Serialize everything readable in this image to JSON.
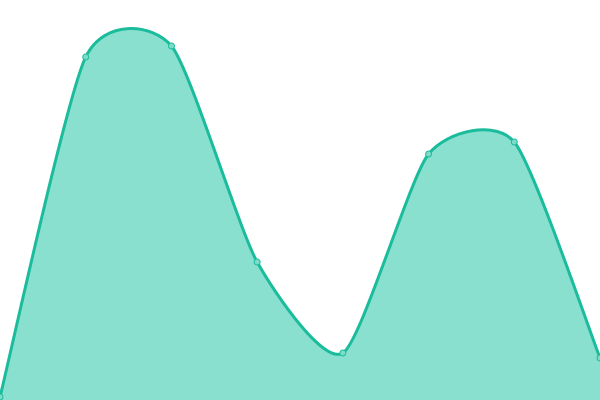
{
  "chart_data": {
    "type": "area",
    "title": "",
    "xlabel": "",
    "ylabel": "",
    "x": [
      0,
      1,
      2,
      3,
      4,
      5,
      6,
      7
    ],
    "series": [
      {
        "values": [
          3,
          343,
          354,
          138,
          47,
          246,
          258,
          42
        ]
      }
    ],
    "xlim": [
      0,
      7
    ],
    "ylim": [
      0,
      400
    ],
    "grid": false,
    "legend": "none",
    "curve": "smooth",
    "markers": true,
    "colors": {
      "line": "#1abc9c",
      "fill": "#8ae0cf",
      "marker_fill": "#7ddcc8"
    }
  }
}
